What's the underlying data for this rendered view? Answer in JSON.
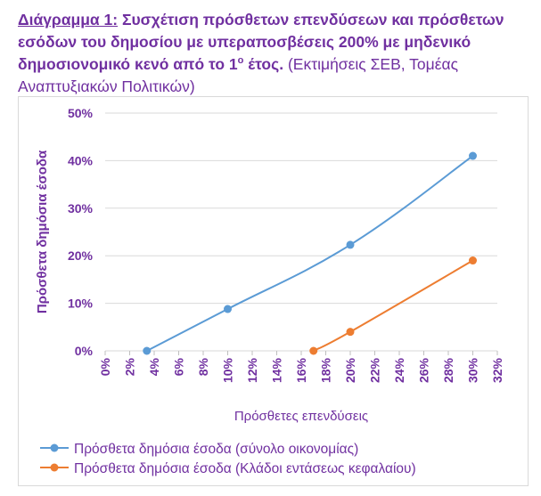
{
  "caption": {
    "label": "Διάγραμμα 1:",
    "title_main": " Συσχέτιση πρόσθετων επενδύσεων και πρόσθετων εσόδων του δημοσίου με υπεραποσβέσεις 200% με μηδενικό δημοσιονομικό κενό από το 1",
    "title_sup": "ο",
    "title_end": " έτος.",
    "note": " (Εκτιμήσεις ΣΕΒ, Τομέας Αναπτυξιακών Πολιτικών)"
  },
  "chart_data": {
    "type": "line",
    "xlabel": "Πρόσθετες επενδύσεις",
    "ylabel": "Πρόσθετα δημόσια έσοδα",
    "xlim": [
      0,
      32
    ],
    "ylim": [
      0,
      50
    ],
    "x_ticks": [
      "0%",
      "2%",
      "4%",
      "6%",
      "8%",
      "10%",
      "12%",
      "14%",
      "16%",
      "18%",
      "20%",
      "22%",
      "24%",
      "26%",
      "28%",
      "30%",
      "32%"
    ],
    "y_ticks": [
      "0%",
      "10%",
      "20%",
      "30%",
      "40%",
      "50%"
    ],
    "grid": "horizontal",
    "legend_position": "bottom",
    "series": [
      {
        "name": "Πρόσθετα δημόσια έσοδα (σύνολο οικονομίας)",
        "color": "#5b9bd5",
        "x": [
          3.4,
          10,
          20,
          30
        ],
        "y": [
          0,
          8.8,
          22.3,
          41
        ]
      },
      {
        "name": "Πρόσθετα δημόσια έσοδα (Κλάδοι εντάσεως κεφαλαίου)",
        "color": "#ed7d31",
        "x": [
          17,
          20,
          30
        ],
        "y": [
          0,
          4,
          19
        ]
      }
    ]
  }
}
